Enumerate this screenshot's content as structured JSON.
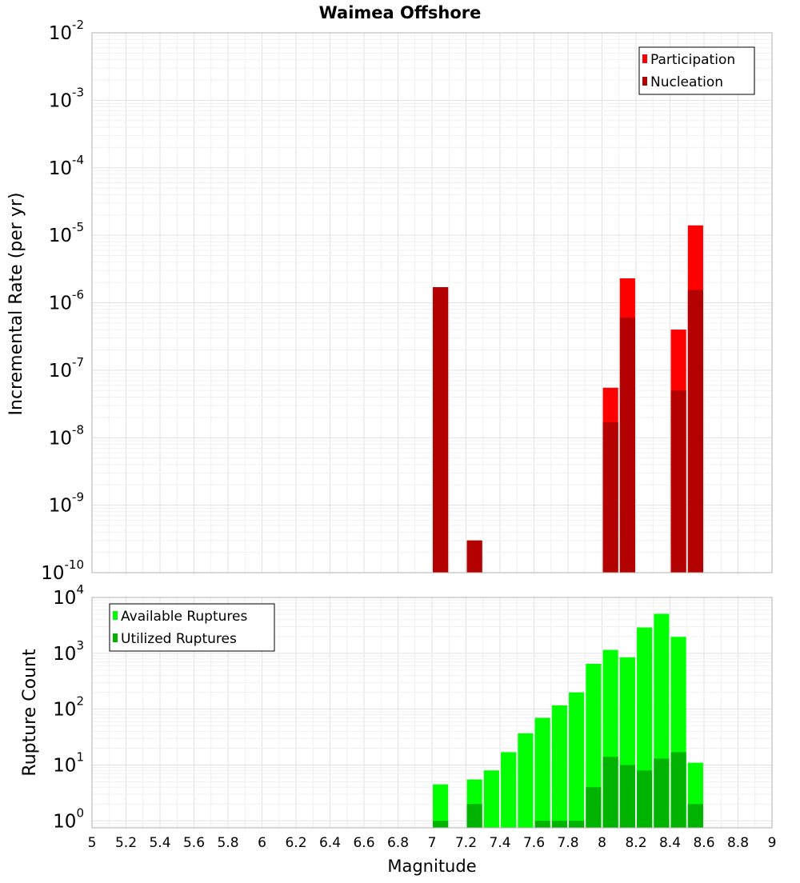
{
  "chart_data": [
    {
      "type": "bar",
      "title": "Waimea Offshore",
      "xlabel": "Magnitude",
      "ylabel": "Incremental Rate (per yr)",
      "yscale": "log",
      "xlim": [
        5,
        9
      ],
      "ylim": [
        1e-10,
        0.01
      ],
      "bar_width": 0.09,
      "ytick_labels": [
        {
          "base": "10",
          "exp": "-10",
          "value": 1e-10
        },
        {
          "base": "10",
          "exp": "-9",
          "value": 1e-09
        },
        {
          "base": "10",
          "exp": "-8",
          "value": 1e-08
        },
        {
          "base": "10",
          "exp": "-7",
          "value": 1e-07
        },
        {
          "base": "10",
          "exp": "-6",
          "value": 1e-06
        },
        {
          "base": "10",
          "exp": "-5",
          "value": 1e-05
        },
        {
          "base": "10",
          "exp": "-4",
          "value": 0.0001
        },
        {
          "base": "10",
          "exp": "-3",
          "value": 0.001
        },
        {
          "base": "10",
          "exp": "-2",
          "value": 0.01
        }
      ],
      "legend": {
        "position": "top-right",
        "entries": [
          "Participation",
          "Nucleation"
        ]
      },
      "series": [
        {
          "name": "Participation",
          "color": "#ff0000",
          "x": [
            7.05,
            7.25,
            8.05,
            8.15,
            8.45,
            8.55
          ],
          "values": [
            1.7e-06,
            3e-10,
            5.5e-08,
            2.3e-06,
            4e-07,
            1.4e-05
          ]
        },
        {
          "name": "Nucleation",
          "color": "#b30000",
          "x": [
            7.05,
            7.25,
            8.05,
            8.15,
            8.45,
            8.55
          ],
          "values": [
            1.7e-06,
            3e-10,
            1.7e-08,
            6e-07,
            5e-08,
            1.55e-06
          ]
        }
      ]
    },
    {
      "type": "bar",
      "title": "",
      "xlabel": "Magnitude",
      "ylabel": "Rupture Count",
      "yscale": "log",
      "xlim": [
        5,
        9
      ],
      "ylim": [
        0.75,
        10000
      ],
      "bar_width": 0.09,
      "xticks": [
        "5",
        "5.2",
        "5.4",
        "5.6",
        "5.8",
        "6",
        "6.2",
        "6.4",
        "6.6",
        "6.8",
        "7",
        "7.2",
        "7.4",
        "7.6",
        "7.8",
        "8",
        "8.2",
        "8.4",
        "8.6",
        "8.8",
        "9"
      ],
      "ytick_labels": [
        {
          "base": "10",
          "exp": "0",
          "value": 1
        },
        {
          "base": "10",
          "exp": "1",
          "value": 10
        },
        {
          "base": "10",
          "exp": "2",
          "value": 100
        },
        {
          "base": "10",
          "exp": "3",
          "value": 1000
        },
        {
          "base": "10",
          "exp": "4",
          "value": 10000
        }
      ],
      "legend": {
        "position": "top-left",
        "entries": [
          "Available Ruptures",
          "Utilized Ruptures"
        ]
      },
      "series": [
        {
          "name": "Available Ruptures",
          "color": "#00ff00",
          "x": [
            7.05,
            7.25,
            7.35,
            7.45,
            7.55,
            7.65,
            7.75,
            7.85,
            7.95,
            8.05,
            8.15,
            8.25,
            8.35,
            8.45,
            8.55
          ],
          "values": [
            4.5,
            5.5,
            8,
            17,
            37,
            70,
            117,
            200,
            650,
            1150,
            850,
            2900,
            5100,
            1970,
            11
          ]
        },
        {
          "name": "Utilized Ruptures",
          "color": "#00b300",
          "x": [
            7.05,
            7.25,
            7.65,
            7.75,
            7.85,
            7.95,
            8.05,
            8.15,
            8.25,
            8.35,
            8.45,
            8.55
          ],
          "values": [
            1,
            2,
            1,
            1,
            1,
            4,
            14,
            10,
            8,
            13,
            17,
            2
          ]
        }
      ]
    }
  ]
}
